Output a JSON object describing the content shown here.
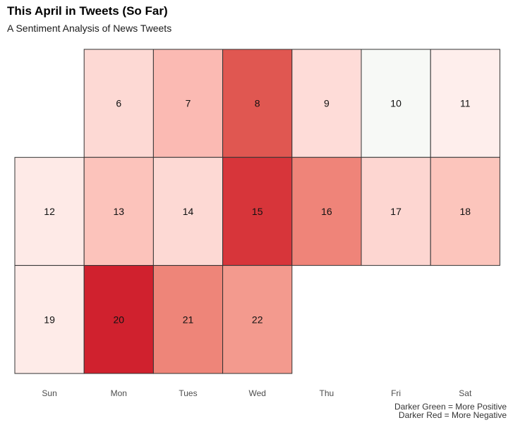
{
  "chart_data": {
    "type": "heatmap",
    "title": "This April in Tweets (So Far)",
    "subtitle": "A Sentiment Analysis of News Tweets",
    "weekdays": [
      "Sun",
      "Mon",
      "Tues",
      "Wed",
      "Thu",
      "Fri",
      "Sat"
    ],
    "cells": [
      {
        "day": 6,
        "week": 0,
        "weekday": 1,
        "color": "#fdd9d4"
      },
      {
        "day": 7,
        "week": 0,
        "weekday": 2,
        "color": "#fbbab3"
      },
      {
        "day": 8,
        "week": 0,
        "weekday": 3,
        "color": "#e05751"
      },
      {
        "day": 9,
        "week": 0,
        "weekday": 4,
        "color": "#fedcd8"
      },
      {
        "day": 10,
        "week": 0,
        "weekday": 5,
        "color": "#f7f9f6"
      },
      {
        "day": 11,
        "week": 0,
        "weekday": 6,
        "color": "#feeeec"
      },
      {
        "day": 12,
        "week": 1,
        "weekday": 0,
        "color": "#feeae7"
      },
      {
        "day": 13,
        "week": 1,
        "weekday": 1,
        "color": "#fcc3bb"
      },
      {
        "day": 14,
        "week": 1,
        "weekday": 2,
        "color": "#fdd9d4"
      },
      {
        "day": 15,
        "week": 1,
        "weekday": 3,
        "color": "#d7353a"
      },
      {
        "day": 16,
        "week": 1,
        "weekday": 4,
        "color": "#ef8479"
      },
      {
        "day": 17,
        "week": 1,
        "weekday": 5,
        "color": "#fdd6d1"
      },
      {
        "day": 18,
        "week": 1,
        "weekday": 6,
        "color": "#fcc5bc"
      },
      {
        "day": 19,
        "week": 2,
        "weekday": 0,
        "color": "#feebe8"
      },
      {
        "day": 20,
        "week": 2,
        "weekday": 1,
        "color": "#d0212e"
      },
      {
        "day": 21,
        "week": 2,
        "weekday": 2,
        "color": "#ee8579"
      },
      {
        "day": 22,
        "week": 2,
        "weekday": 3,
        "color": "#f39a8e"
      }
    ]
  },
  "legend": {
    "line1": "Darker Green = More Positive",
    "line2": "Darker Red = More Negative"
  }
}
